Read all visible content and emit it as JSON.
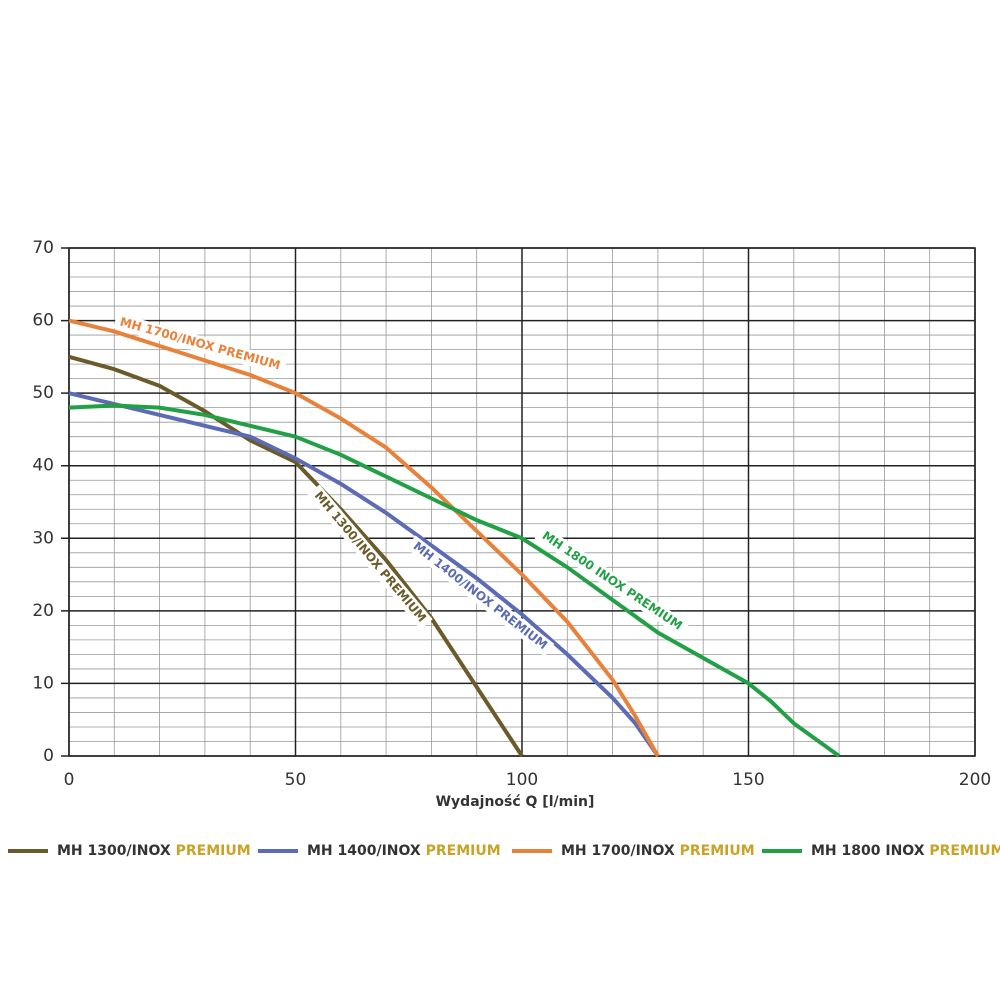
{
  "chart_data": {
    "type": "line",
    "xlabel": "Wydajność Q [l/min]",
    "xlim": [
      0,
      200
    ],
    "xticks": [
      0,
      50,
      100,
      150,
      200
    ],
    "ylim": [
      0,
      70
    ],
    "yticks": [
      0,
      10,
      20,
      30,
      40,
      50,
      60,
      70
    ],
    "grid": true,
    "minor_xstep": 10,
    "minor_ystep": 2,
    "legend": "bottom",
    "legend_highlight_color": "#c9a227",
    "series": [
      {
        "name": "MH 1300/INOX PREMIUM",
        "color": "#6b5a2a",
        "x": [
          0,
          10,
          20,
          30,
          40,
          50,
          60,
          70,
          80,
          90,
          100
        ],
        "values": [
          55,
          53.3,
          51,
          47.5,
          43.5,
          40.5,
          34,
          27,
          19,
          9.5,
          0
        ]
      },
      {
        "name": "MH 1400/INOX PREMIUM",
        "color": "#5b6bb5",
        "x": [
          0,
          10,
          20,
          30,
          40,
          50,
          60,
          70,
          80,
          90,
          100,
          110,
          120,
          125,
          130
        ],
        "values": [
          50,
          48.5,
          47,
          45.5,
          44,
          41,
          37.5,
          33.5,
          29,
          24.5,
          19.5,
          14,
          8,
          4.5,
          0
        ]
      },
      {
        "name": "MH 1700/INOX PREMIUM",
        "color": "#e8823a",
        "x": [
          0,
          10,
          20,
          30,
          40,
          50,
          60,
          70,
          80,
          90,
          100,
          110,
          120,
          125,
          130
        ],
        "values": [
          60,
          58.5,
          56.5,
          54.5,
          52.5,
          50,
          46.5,
          42.5,
          37,
          31,
          25,
          18.5,
          10.5,
          5.5,
          0
        ]
      },
      {
        "name": "MH 1800 INOX PREMIUM",
        "color": "#22a045",
        "x": [
          0,
          10,
          20,
          30,
          40,
          50,
          60,
          70,
          80,
          90,
          100,
          110,
          120,
          130,
          140,
          150,
          155,
          160,
          170
        ],
        "values": [
          48,
          48.3,
          48,
          47,
          45.5,
          44,
          41.5,
          38.5,
          35.5,
          32.5,
          30,
          26,
          21.5,
          17,
          13.5,
          10,
          7.5,
          4.5,
          0
        ]
      }
    ],
    "annotations": [
      {
        "text": "MH 1700/INOX PREMIUM",
        "color": "#e8823a"
      },
      {
        "text": "MH 1300/INOX PREMIUM",
        "color": "#6b5a2a"
      },
      {
        "text": "MH 1400/INOX PREMIUM",
        "color": "#5b6bb5"
      },
      {
        "text": "MH 1800 INOX PREMIUM",
        "color": "#22a045"
      }
    ]
  }
}
